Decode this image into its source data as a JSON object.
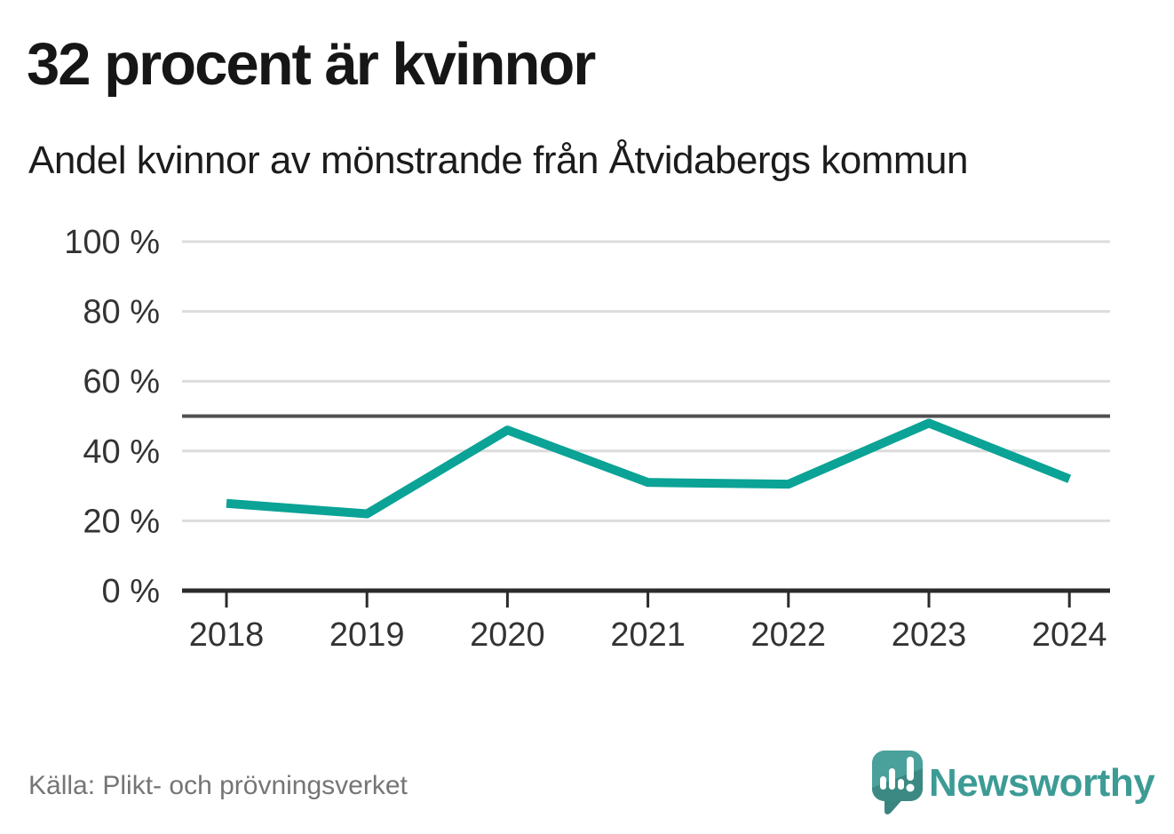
{
  "header": {
    "title": "32 procent är kvinnor",
    "subtitle": "Andel kvinnor av mönstrande från Åtvidabergs kommun"
  },
  "chart_data": {
    "type": "line",
    "title": "32 procent är kvinnor",
    "subtitle": "Andel kvinnor av mönstrande från Åtvidabergs kommun",
    "x": [
      2018,
      2019,
      2020,
      2021,
      2022,
      2023,
      2024
    ],
    "x_labels": [
      "2018",
      "2019",
      "2020",
      "2021",
      "2022",
      "2023",
      "2024"
    ],
    "series": [
      {
        "name": "Andel kvinnor av mönstrande",
        "values": [
          25,
          22,
          46,
          31,
          30.5,
          48,
          32
        ]
      }
    ],
    "ylim": [
      0,
      100
    ],
    "yticks": [
      0,
      20,
      40,
      60,
      80,
      100
    ],
    "ytick_labels": [
      "0 %",
      "20 %",
      "40 %",
      "60 %",
      "80 %",
      "100 %"
    ],
    "reference_line": 50,
    "grid": true,
    "legend": "none",
    "colors": {
      "line": "#0aa396",
      "gridline": "#dcdcdc",
      "reference_line": "#4f4f52",
      "axis": "#2b2b2b",
      "tick_label": "#333333"
    }
  },
  "footer": {
    "source": "Källa: Plikt- och prövningsverket",
    "brand": "Newsworthy",
    "brand_color": "#3d9b95",
    "logo_icon": "newsworthy-speech-bubble-chart-icon"
  }
}
